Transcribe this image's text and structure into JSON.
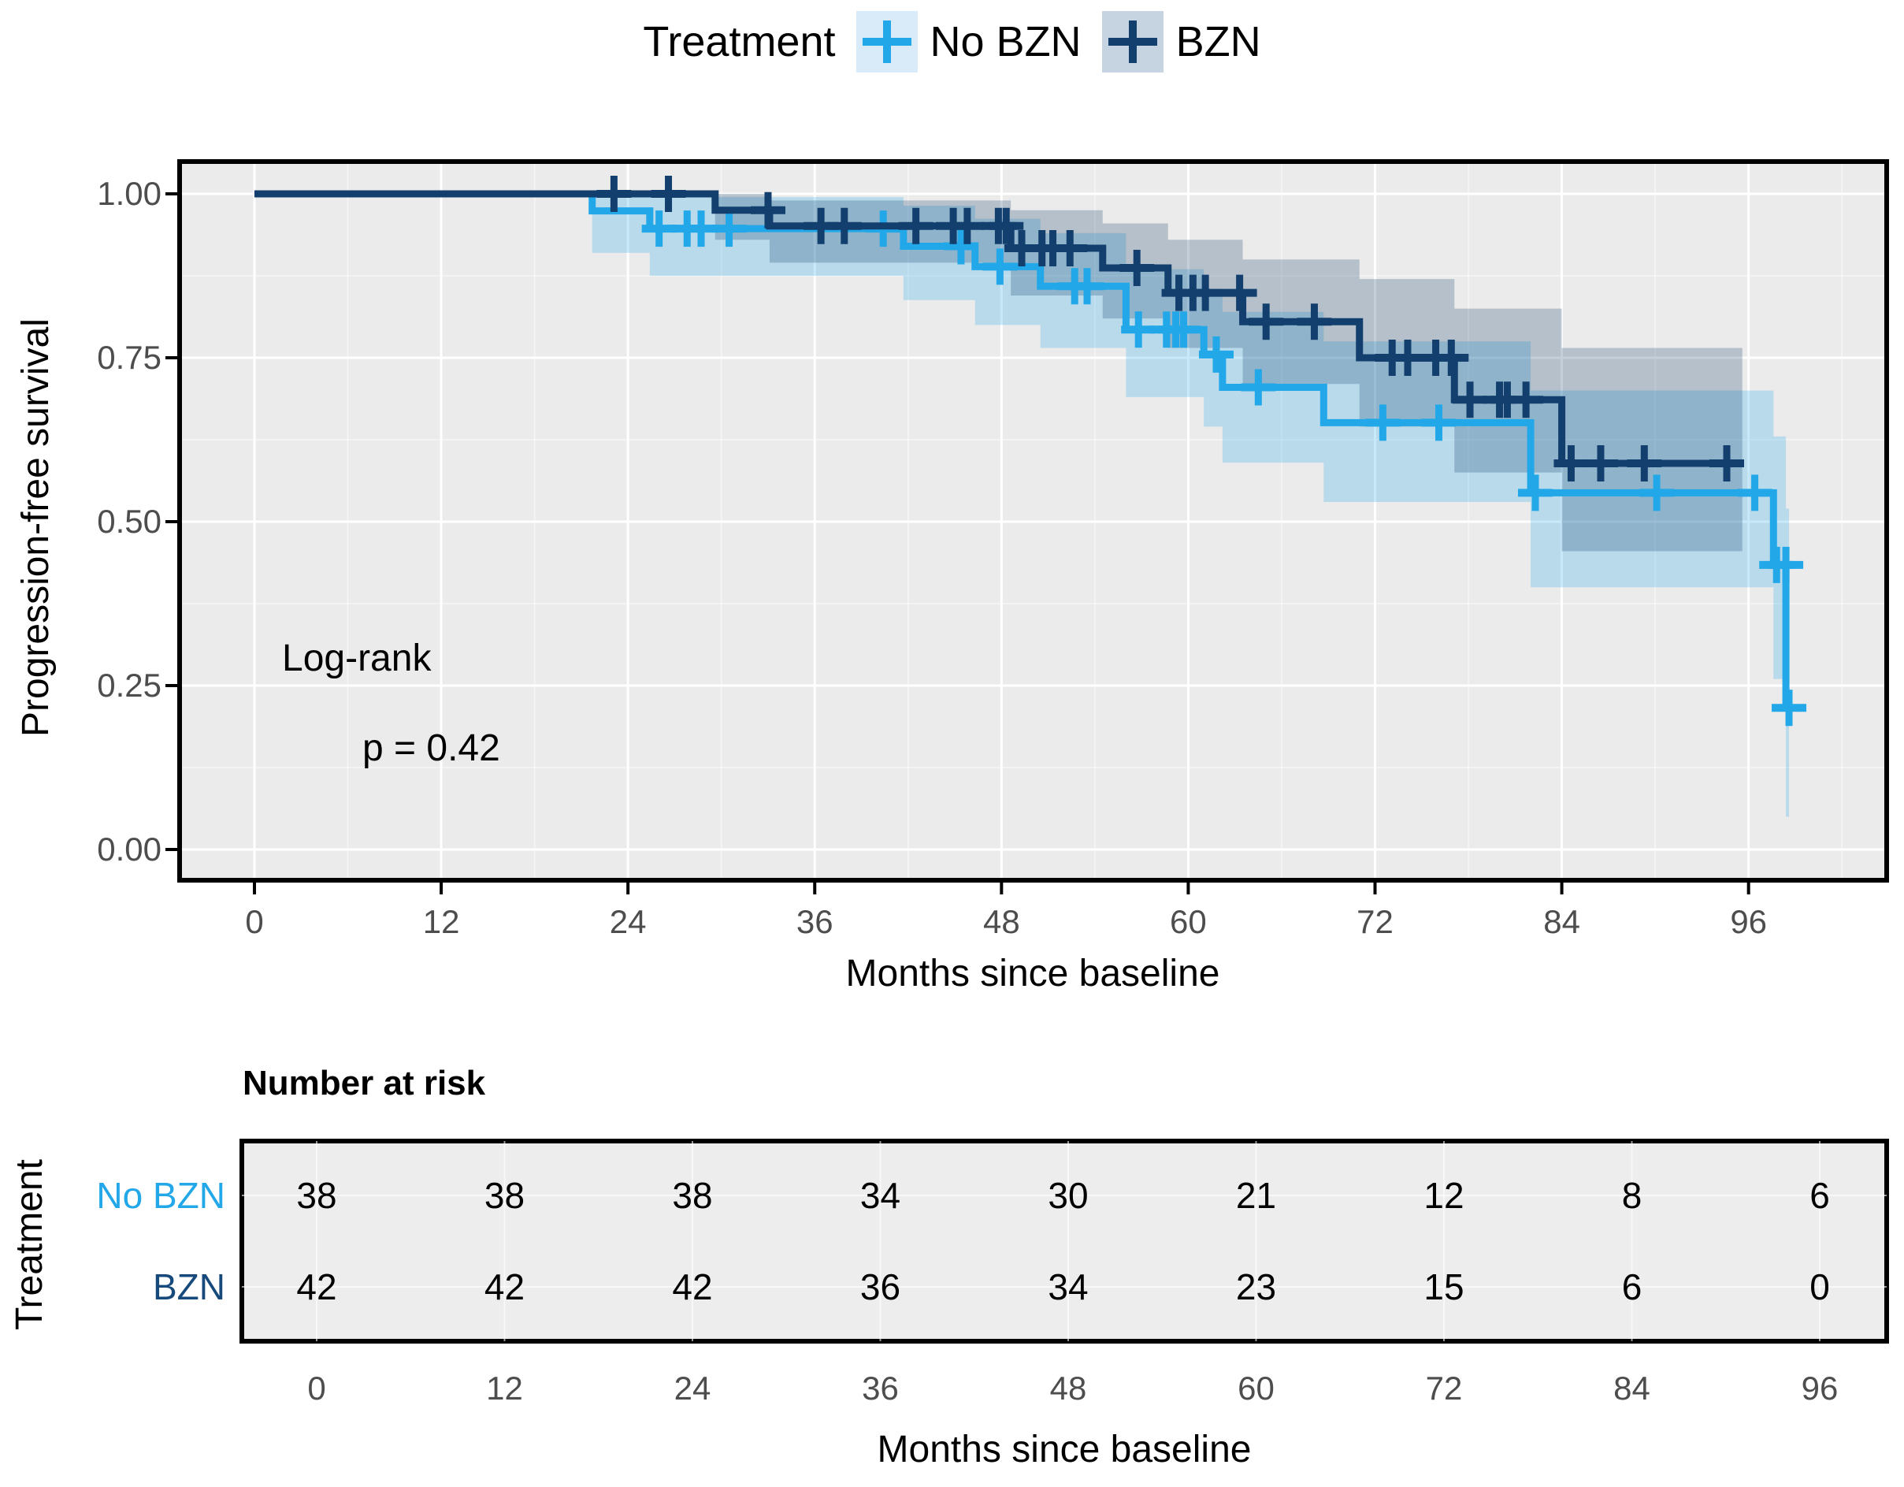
{
  "legend": {
    "title": "Treatment",
    "items": [
      {
        "label": "No BZN",
        "color": "#22A7E8",
        "key_bg": "#D9EAF8"
      },
      {
        "label": "BZN",
        "color": "#123F6D",
        "key_bg": "#C6D3E1"
      }
    ]
  },
  "y_axis": {
    "title": "Progression-free survival",
    "ticks": [
      "1.00",
      "0.75",
      "0.50",
      "0.25",
      "0.00"
    ],
    "tick_values": [
      1.0,
      0.75,
      0.5,
      0.25,
      0.0
    ]
  },
  "x_axis": {
    "title": "Months since baseline",
    "ticks": [
      0,
      12,
      24,
      36,
      48,
      60,
      72,
      84,
      96
    ]
  },
  "annotation": {
    "line1": "Log-rank",
    "line2": "p = 0.42"
  },
  "risk_table": {
    "title": "Number at risk",
    "side_label": "Treatment",
    "x_title": "Months since baseline",
    "x_ticks": [
      0,
      12,
      24,
      36,
      48,
      60,
      72,
      84,
      96
    ],
    "rows": [
      {
        "label": "No BZN",
        "color": "#22A7E8",
        "values": [
          38,
          38,
          38,
          34,
          30,
          21,
          12,
          8,
          6
        ]
      },
      {
        "label": "BZN",
        "color": "#174A7C",
        "values": [
          42,
          42,
          42,
          36,
          34,
          23,
          15,
          6,
          0
        ]
      }
    ]
  },
  "chart_data": {
    "type": "line",
    "subtype": "kaplan-meier-step",
    "title": "Treatment",
    "xlabel": "Months since baseline",
    "ylabel": "Progression-free survival",
    "xlim": [
      0,
      99
    ],
    "ylim": [
      0,
      1.0
    ],
    "grid": "major-minor-white-on-gray",
    "legend_position": "top",
    "pvalue": 0.42,
    "test": "Log-rank",
    "series": [
      {
        "name": "No BZN",
        "color": "#22A7E8",
        "ci_fill": "rgba(34,167,232,0.25)",
        "end": 98.6,
        "steps": [
          [
            0,
            1.0
          ],
          [
            21.7,
            0.974
          ],
          [
            25.4,
            0.947
          ],
          [
            41.7,
            0.92
          ],
          [
            46.3,
            0.889
          ],
          [
            50.5,
            0.859
          ],
          [
            56.0,
            0.793
          ],
          [
            61.0,
            0.755
          ],
          [
            62.2,
            0.705
          ],
          [
            68.7,
            0.651
          ],
          [
            82.0,
            0.544
          ],
          [
            97.6,
            0.434
          ],
          [
            98.4,
            0.216
          ]
        ],
        "censors": [
          [
            26.0,
            0.947
          ],
          [
            27.8,
            0.947
          ],
          [
            28.7,
            0.947
          ],
          [
            30.5,
            0.947
          ],
          [
            40.4,
            0.947
          ],
          [
            45.4,
            0.92
          ],
          [
            47.9,
            0.889
          ],
          [
            52.7,
            0.859
          ],
          [
            53.5,
            0.859
          ],
          [
            56.8,
            0.793
          ],
          [
            58.6,
            0.793
          ],
          [
            59.2,
            0.793
          ],
          [
            59.7,
            0.793
          ],
          [
            61.8,
            0.755
          ],
          [
            64.5,
            0.705
          ],
          [
            72.5,
            0.651
          ],
          [
            76.1,
            0.651
          ],
          [
            82.3,
            0.544
          ],
          [
            90.1,
            0.544
          ],
          [
            96.4,
            0.544
          ],
          [
            97.8,
            0.434
          ],
          [
            98.4,
            0.434
          ],
          [
            98.6,
            0.216
          ]
        ],
        "ci": [
          [
            0,
            1.0,
            1.0
          ],
          [
            21.7,
            0.91,
            1.0
          ],
          [
            25.4,
            0.875,
            0.995
          ],
          [
            41.7,
            0.838,
            0.982
          ],
          [
            46.3,
            0.8,
            0.962
          ],
          [
            50.5,
            0.765,
            0.94
          ],
          [
            56.0,
            0.69,
            0.885
          ],
          [
            61.0,
            0.645,
            0.855
          ],
          [
            62.2,
            0.59,
            0.82
          ],
          [
            68.7,
            0.53,
            0.775
          ],
          [
            82.0,
            0.4,
            0.7
          ],
          [
            97.6,
            0.26,
            0.63
          ],
          [
            98.4,
            0.05,
            0.52
          ]
        ]
      },
      {
        "name": "BZN",
        "color": "#123F6D",
        "ci_fill": "rgba(18,63,109,0.25)",
        "end": 95.6,
        "steps": [
          [
            0,
            1.0
          ],
          [
            29.6,
            0.975
          ],
          [
            33.1,
            0.951
          ],
          [
            48.6,
            0.917
          ],
          [
            54.5,
            0.887
          ],
          [
            58.7,
            0.849
          ],
          [
            63.5,
            0.805
          ],
          [
            71.0,
            0.75
          ],
          [
            77.1,
            0.686
          ],
          [
            84.0,
            0.589
          ]
        ],
        "censors": [
          [
            23.1,
            1.0
          ],
          [
            26.6,
            1.0
          ],
          [
            33.0,
            0.975
          ],
          [
            36.4,
            0.951
          ],
          [
            37.9,
            0.951
          ],
          [
            42.5,
            0.951
          ],
          [
            44.9,
            0.951
          ],
          [
            45.8,
            0.951
          ],
          [
            47.8,
            0.951
          ],
          [
            48.3,
            0.951
          ],
          [
            49.3,
            0.917
          ],
          [
            50.6,
            0.917
          ],
          [
            51.3,
            0.917
          ],
          [
            52.4,
            0.917
          ],
          [
            56.7,
            0.887
          ],
          [
            59.4,
            0.849
          ],
          [
            60.3,
            0.849
          ],
          [
            61.1,
            0.849
          ],
          [
            63.3,
            0.849
          ],
          [
            65.0,
            0.805
          ],
          [
            68.1,
            0.805
          ],
          [
            73.1,
            0.75
          ],
          [
            74.1,
            0.75
          ],
          [
            75.9,
            0.75
          ],
          [
            76.9,
            0.75
          ],
          [
            78.1,
            0.686
          ],
          [
            80.0,
            0.686
          ],
          [
            80.5,
            0.686
          ],
          [
            81.7,
            0.686
          ],
          [
            84.6,
            0.589
          ],
          [
            86.5,
            0.589
          ],
          [
            89.3,
            0.589
          ],
          [
            94.6,
            0.589
          ]
        ],
        "ci": [
          [
            0,
            1.0,
            1.0
          ],
          [
            29.6,
            0.93,
            1.0
          ],
          [
            33.1,
            0.895,
            0.99
          ],
          [
            48.6,
            0.845,
            0.975
          ],
          [
            54.5,
            0.81,
            0.955
          ],
          [
            58.7,
            0.765,
            0.93
          ],
          [
            63.5,
            0.71,
            0.9
          ],
          [
            71.0,
            0.645,
            0.87
          ],
          [
            77.1,
            0.575,
            0.825
          ],
          [
            84.0,
            0.455,
            0.765
          ]
        ]
      }
    ],
    "risk_table": {
      "title": "Number at risk",
      "categories": [
        0,
        12,
        24,
        36,
        48,
        60,
        72,
        84,
        96
      ],
      "rows": [
        {
          "name": "No BZN",
          "values": [
            38,
            38,
            38,
            34,
            30,
            21,
            12,
            8,
            6
          ]
        },
        {
          "name": "BZN",
          "values": [
            42,
            42,
            42,
            36,
            34,
            23,
            15,
            6,
            0
          ]
        }
      ]
    }
  }
}
